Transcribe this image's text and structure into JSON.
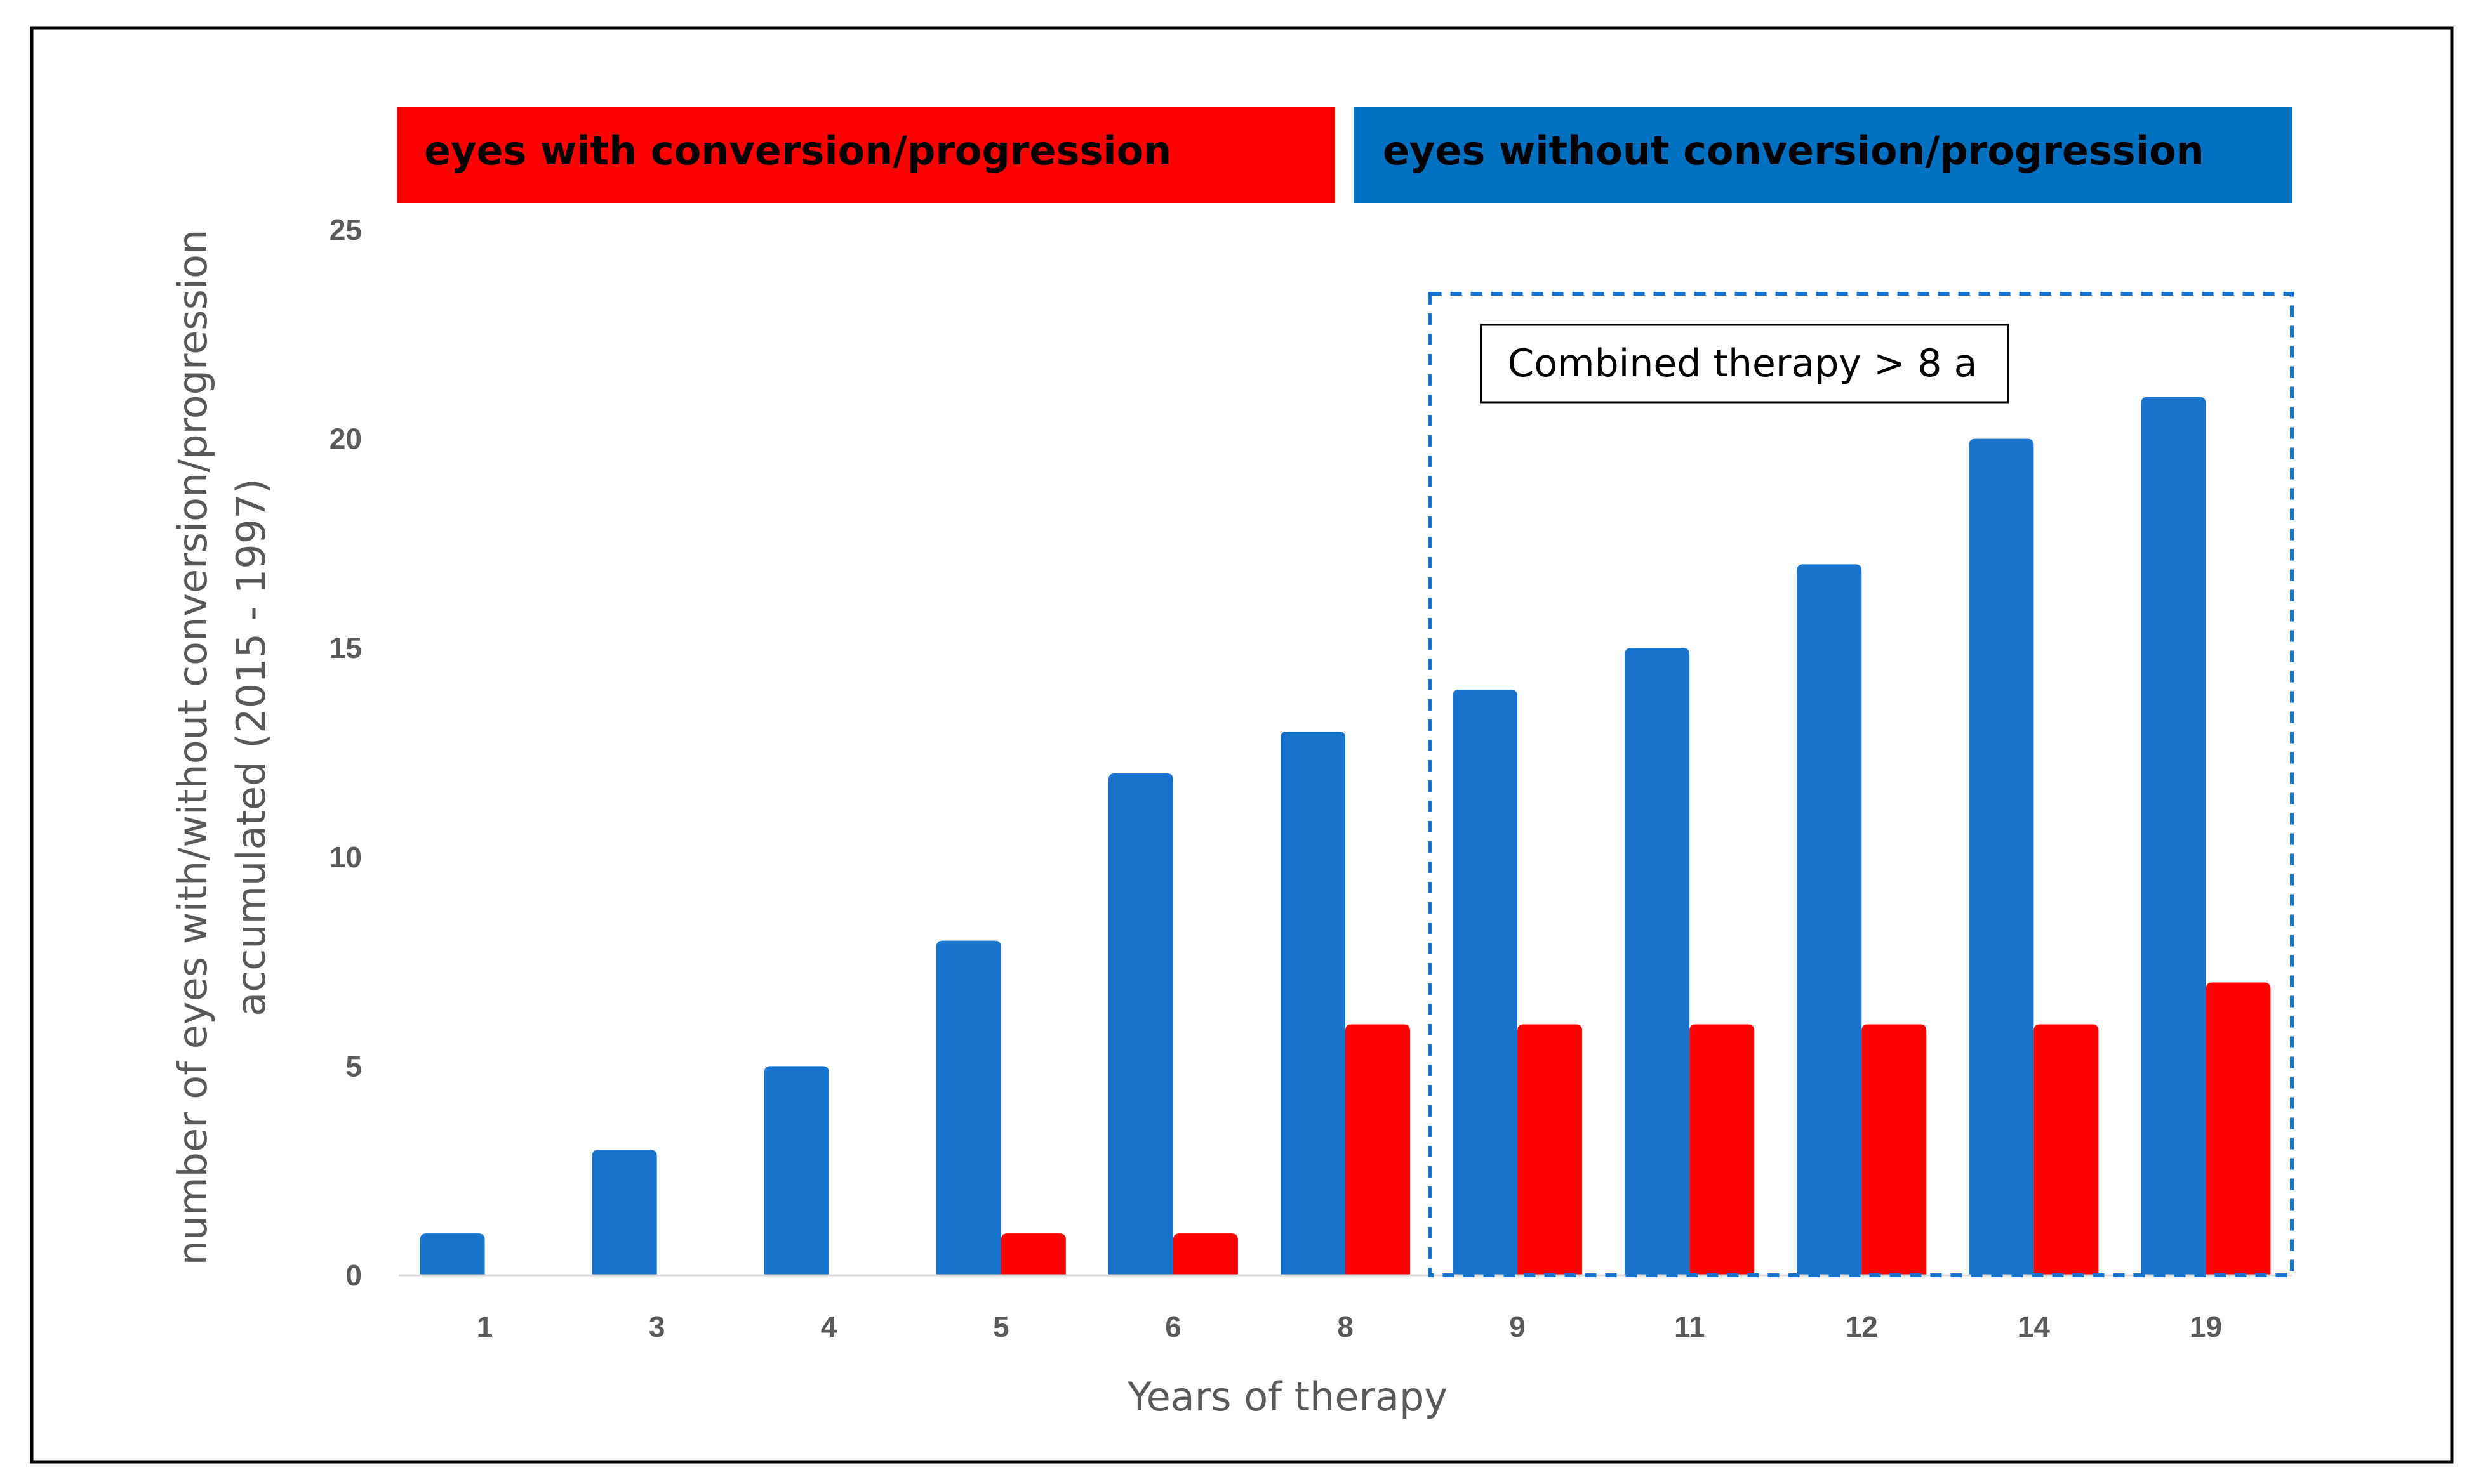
{
  "colors": {
    "with": "#ff0000",
    "without": "#1873cc",
    "banner_without": "#0070c0",
    "highlight_box": "#1873cc",
    "axis_text": "#595959"
  },
  "banners": {
    "with_label": "eyes with conversion/progression",
    "without_label": "eyes without conversion/progression"
  },
  "annotation": {
    "text": "Combined therapy > 8 a",
    "highlight_from_category": "9",
    "highlight_to_category": "19"
  },
  "chart_data": {
    "type": "bar",
    "categories": [
      "1",
      "3",
      "4",
      "5",
      "6",
      "8",
      "9",
      "11",
      "12",
      "14",
      "19"
    ],
    "series": [
      {
        "name": "eyes without conversion/progression",
        "values": [
          1,
          3,
          5,
          8,
          12,
          13,
          14,
          15,
          17,
          20,
          21
        ]
      },
      {
        "name": "eyes with conversion/progression",
        "values": [
          0,
          0,
          0,
          1,
          1,
          6,
          6,
          6,
          6,
          6,
          7
        ]
      }
    ],
    "title": "",
    "xlabel": "Years of therapy",
    "ylabel_line1": "number of eyes with/without conversion/progression",
    "ylabel_line2": "accumulated (2015 - 1997)",
    "ylim": [
      0,
      25
    ],
    "yticks": [
      0,
      5,
      10,
      15,
      20,
      25
    ],
    "grid": false,
    "legend": "top"
  }
}
